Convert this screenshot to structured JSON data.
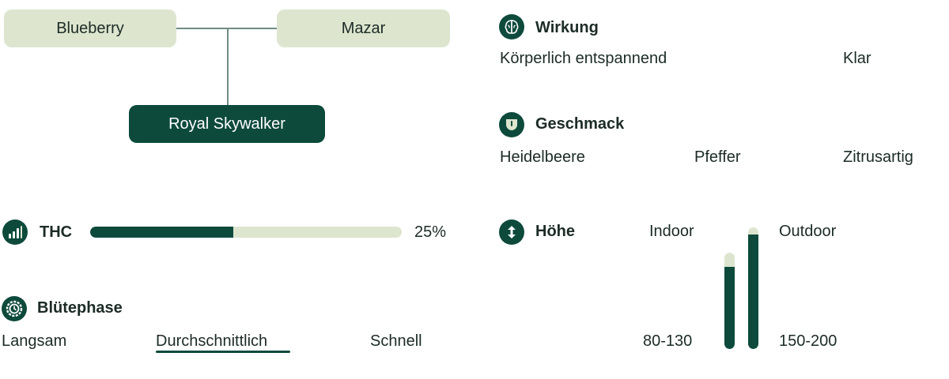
{
  "genealogy": {
    "parent_left": "Blueberry",
    "parent_right": "Mazar",
    "child": "Royal Skywalker"
  },
  "thc": {
    "label": "THC",
    "value_text": "25%",
    "fill_fraction": 0.46
  },
  "bluetephase": {
    "title": "Blütephase",
    "options": [
      "Langsam",
      "Durchschnittlich",
      "Schnell"
    ],
    "selected": "Durchschnittlich"
  },
  "wirkung": {
    "title": "Wirkung",
    "items": [
      "Körperlich entspannend",
      "Klar"
    ]
  },
  "geschmack": {
    "title": "Geschmack",
    "items": [
      "Heidelbeere",
      "Pfeffer",
      "Zitrusartig"
    ]
  },
  "hoehe": {
    "title": "Höhe",
    "indoor_label": "Indoor",
    "outdoor_label": "Outdoor",
    "indoor_range": "80-130",
    "outdoor_range": "150-200",
    "indoor_fill_fraction": 0.85,
    "outdoor_fill_fraction": 0.94
  },
  "colors": {
    "accent": "#0d4a3c",
    "light": "#dde5cf",
    "text": "#1c2b26"
  },
  "icons": {
    "thc": "signal-bars-icon",
    "bluetephase": "clock-gear-icon",
    "wirkung": "brain-icon",
    "geschmack": "taste-shield-icon",
    "hoehe": "up-down-arrows-icon"
  }
}
